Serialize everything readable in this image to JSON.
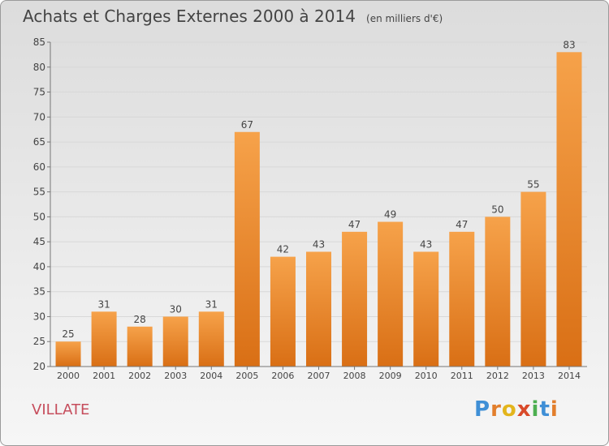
{
  "title": "Achats et Charges Externes 2000 à 2014",
  "subtitle": "(en milliers d'€)",
  "town": "VILLATE",
  "logo": {
    "letters": [
      "P",
      "r",
      "o",
      "x",
      "i",
      "t",
      "i"
    ],
    "colors": [
      "#3f8fd6",
      "#e27e2c",
      "#e3b51c",
      "#d94a2a",
      "#4caf50",
      "#3f8fd6",
      "#e27e2c"
    ]
  },
  "colors": {
    "bar_top": "#f6a24a",
    "bar_bottom": "#d96f15",
    "text": "#444444",
    "grid": "#d8d8d8"
  },
  "chart_data": {
    "type": "bar",
    "categories": [
      "2000",
      "2001",
      "2002",
      "2003",
      "2004",
      "2005",
      "2006",
      "2007",
      "2008",
      "2009",
      "2010",
      "2011",
      "2012",
      "2013",
      "2014"
    ],
    "values": [
      25,
      31,
      28,
      30,
      31,
      67,
      42,
      43,
      47,
      49,
      43,
      47,
      50,
      55,
      83
    ],
    "ylim": [
      20,
      85
    ],
    "yticks": [
      20,
      25,
      30,
      35,
      40,
      45,
      50,
      55,
      60,
      65,
      70,
      75,
      80,
      85
    ],
    "grid": true
  }
}
